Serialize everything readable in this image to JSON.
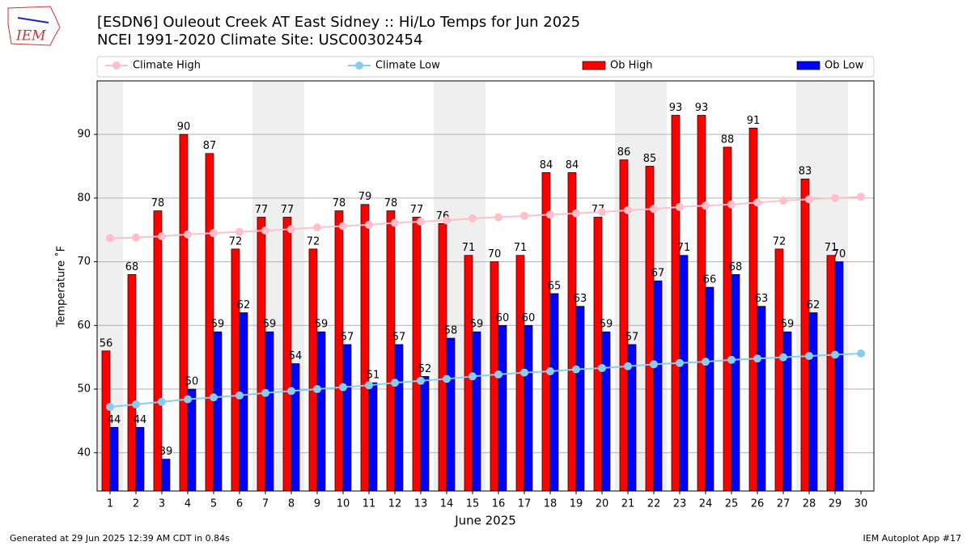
{
  "chart_data": {
    "type": "bar",
    "title": "[ESDN6] Ouleout Creek  AT East Sidney :: Hi/Lo Temps for Jun 2025",
    "subtitle": "NCEI 1991-2020 Climate Site: USC00302454",
    "logo": "IEM",
    "xlabel": "June 2025",
    "ylabel": "Temperature ˚F",
    "footer_left": "Generated at 29 Jun 2025 12:39 AM CDT in 0.84s",
    "footer_right": "IEM Autoplot App #17",
    "x": [
      1,
      2,
      3,
      4,
      5,
      6,
      7,
      8,
      9,
      10,
      11,
      12,
      13,
      14,
      15,
      16,
      17,
      18,
      19,
      20,
      21,
      22,
      23,
      24,
      25,
      26,
      27,
      28,
      29,
      30
    ],
    "xlim": [
      0.5,
      30.5
    ],
    "xticks": [
      1,
      2,
      3,
      4,
      5,
      6,
      7,
      8,
      9,
      10,
      11,
      12,
      13,
      14,
      15,
      16,
      17,
      18,
      19,
      20,
      21,
      22,
      23,
      24,
      25,
      26,
      27,
      28,
      29,
      30
    ],
    "ylim": [
      34,
      98.4
    ],
    "yticks": [
      40,
      50,
      60,
      70,
      80,
      90
    ],
    "grid": true,
    "series": [
      {
        "name": "Climate High",
        "type": "line",
        "color": "#ffc0cb",
        "values": [
          73.7,
          73.8,
          74.0,
          74.3,
          74.5,
          74.7,
          74.9,
          75.1,
          75.4,
          75.6,
          75.8,
          76.1,
          76.3,
          76.5,
          76.8,
          77.0,
          77.2,
          77.4,
          77.6,
          77.8,
          78.1,
          78.3,
          78.6,
          78.8,
          79.0,
          79.3,
          79.6,
          79.8,
          80.0,
          80.2
        ]
      },
      {
        "name": "Climate Low",
        "type": "line",
        "color": "#87ceeb",
        "values": [
          47.2,
          47.6,
          48.0,
          48.4,
          48.7,
          49.0,
          49.4,
          49.7,
          50.0,
          50.3,
          50.6,
          51.0,
          51.3,
          51.6,
          52.0,
          52.3,
          52.6,
          52.8,
          53.1,
          53.3,
          53.6,
          53.9,
          54.1,
          54.3,
          54.6,
          54.8,
          55.0,
          55.2,
          55.4,
          55.6
        ]
      },
      {
        "name": "Ob High",
        "type": "bar",
        "color": "#ff0000",
        "values": [
          56,
          68,
          78,
          90,
          87,
          72,
          77,
          77,
          72,
          78,
          79,
          78,
          77,
          76,
          71,
          70,
          71,
          84,
          84,
          77,
          86,
          85,
          93,
          93,
          88,
          91,
          72,
          83,
          71,
          null
        ]
      },
      {
        "name": "Ob Low",
        "type": "bar",
        "color": "#0000ff",
        "values": [
          44,
          44,
          39,
          50,
          59,
          62,
          59,
          54,
          59,
          57,
          51,
          57,
          52,
          58,
          59,
          60,
          60,
          65,
          63,
          59,
          57,
          67,
          71,
          66,
          68,
          63,
          59,
          62,
          70,
          null
        ]
      }
    ]
  }
}
